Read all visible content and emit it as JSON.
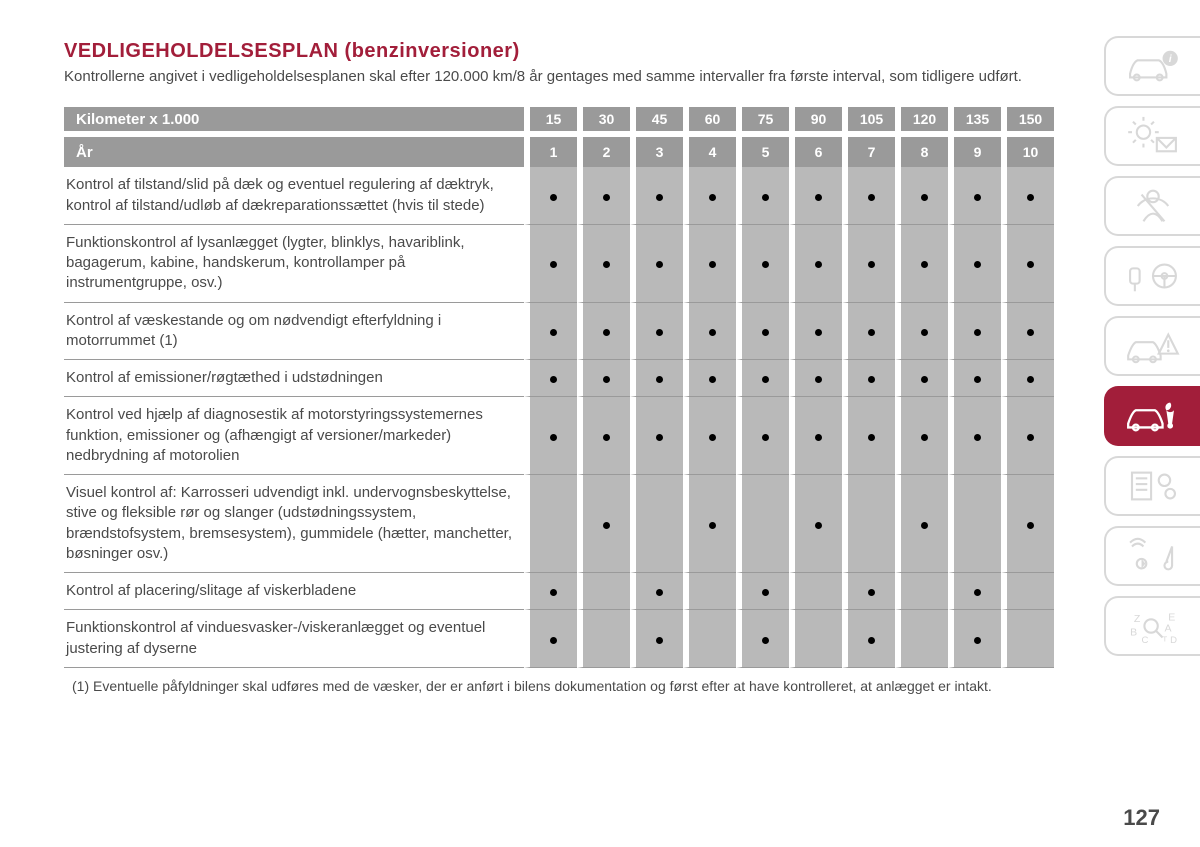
{
  "title": "VEDLIGEHOLDELSESPLAN (benzinversioner)",
  "intro": "Kontrollerne angivet i vedligeholdelsesplanen skal efter 120.000 km/8 år gentages med samme intervaller fra første interval, som tidligere udført.",
  "header_km_label": "Kilometer x 1.000",
  "header_yr_label": "År",
  "km_values": [
    "15",
    "30",
    "45",
    "60",
    "75",
    "90",
    "105",
    "120",
    "135",
    "150"
  ],
  "yr_values": [
    "1",
    "2",
    "3",
    "4",
    "5",
    "6",
    "7",
    "8",
    "9",
    "10"
  ],
  "rows": [
    {
      "desc": "Kontrol af tilstand/slid på dæk og eventuel regulering af dæktryk, kontrol af tilstand/udløb af dækreparationssættet (hvis til stede)",
      "marks": [
        1,
        1,
        1,
        1,
        1,
        1,
        1,
        1,
        1,
        1
      ]
    },
    {
      "desc": "Funktionskontrol af lysanlægget (lygter, blinklys, havariblink, bagagerum, kabine, handskerum, kontrollamper på instrumentgruppe, osv.)",
      "marks": [
        1,
        1,
        1,
        1,
        1,
        1,
        1,
        1,
        1,
        1
      ]
    },
    {
      "desc": "Kontrol af væskestande og om nødvendigt efterfyldning i motorrummet (1)",
      "marks": [
        1,
        1,
        1,
        1,
        1,
        1,
        1,
        1,
        1,
        1
      ]
    },
    {
      "desc": "Kontrol af emissioner/røgtæthed i udstødningen",
      "marks": [
        1,
        1,
        1,
        1,
        1,
        1,
        1,
        1,
        1,
        1
      ]
    },
    {
      "desc": "Kontrol ved hjælp af diagnosestik af motorstyringssystemernes funktion, emissioner og (afhængigt af versioner/markeder) nedbrydning af motorolien",
      "marks": [
        1,
        1,
        1,
        1,
        1,
        1,
        1,
        1,
        1,
        1
      ]
    },
    {
      "desc": "Visuel kontrol af: Karrosseri udvendigt inkl. undervognsbeskyttelse, stive og fleksible rør og slanger (udstødningssystem, brændstofsystem, bremsesystem), gummidele (hætter, manchetter, bøsninger osv.)",
      "marks": [
        0,
        1,
        0,
        1,
        0,
        1,
        0,
        1,
        0,
        1
      ]
    },
    {
      "desc": "Kontrol af placering/slitage af viskerbladene",
      "marks": [
        1,
        0,
        1,
        0,
        1,
        0,
        1,
        0,
        1,
        0
      ]
    },
    {
      "desc": "Funktionskontrol af vinduesvasker-/viskeranlægget og eventuel justering af dyserne",
      "marks": [
        1,
        0,
        1,
        0,
        1,
        0,
        1,
        0,
        1,
        0
      ]
    }
  ],
  "footnote": "(1) Eventuelle påfyldninger skal udføres med de væsker, der er anført i bilens dokumentation og først efter at have kontrolleret, at anlægget er intakt.",
  "page_number": "127",
  "colors": {
    "title": "#a21e3a",
    "header_bg": "#9a9a9a",
    "column_bg": "#b9b9b9",
    "row_border": "#9a9a9a",
    "text": "#4a4a4a",
    "active_tab_bg": "#a21e3a",
    "inactive_tab_border": "#d8d8d8"
  },
  "tabs": [
    {
      "name": "car-info-icon",
      "active": false
    },
    {
      "name": "lights-icon",
      "active": false
    },
    {
      "name": "seatbelt-icon",
      "active": false
    },
    {
      "name": "key-wheel-icon",
      "active": false
    },
    {
      "name": "crash-warning-icon",
      "active": false
    },
    {
      "name": "maintenance-icon",
      "active": true
    },
    {
      "name": "document-gears-icon",
      "active": false
    },
    {
      "name": "infotainment-icon",
      "active": false
    },
    {
      "name": "index-icon",
      "active": false
    }
  ]
}
